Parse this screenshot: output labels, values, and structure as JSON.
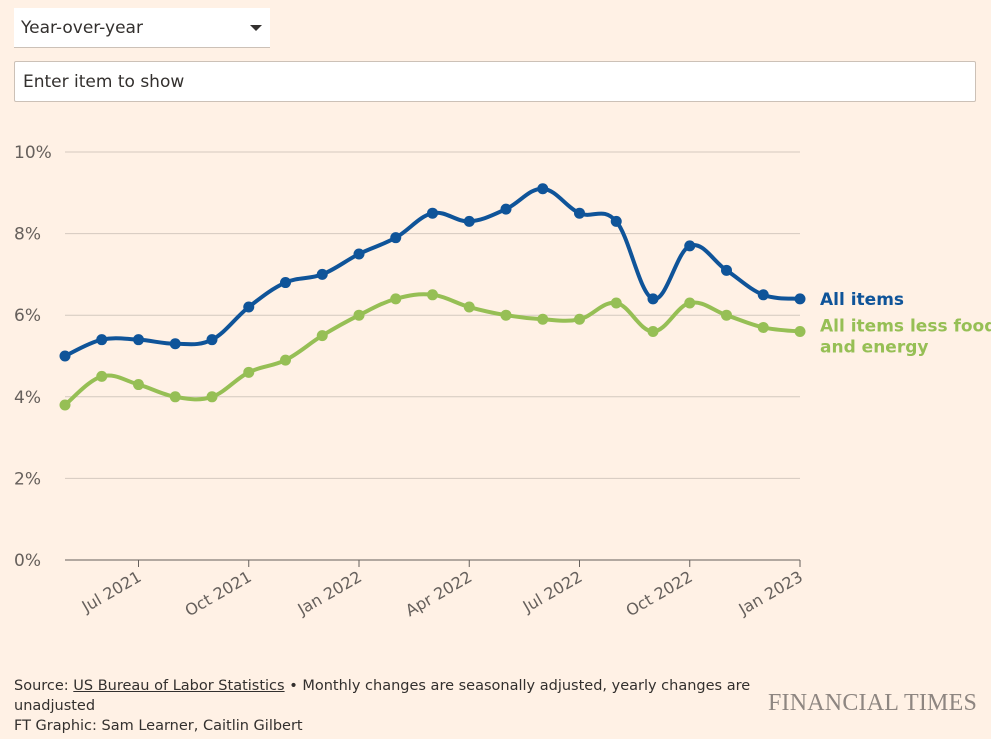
{
  "controls": {
    "mode_select": "Year-over-year",
    "search_placeholder": "Enter item to show"
  },
  "chart_data": {
    "type": "line",
    "x": [
      "May 2021",
      "Jun 2021",
      "Jul 2021",
      "Aug 2021",
      "Sep 2021",
      "Oct 2021",
      "Nov 2021",
      "Dec 2021",
      "Jan 2022",
      "Feb 2022",
      "Mar 2022",
      "Apr 2022",
      "May 2022",
      "Jun 2022",
      "Jul 2022",
      "Aug 2022",
      "Sep 2022",
      "Oct 2022",
      "Nov 2022",
      "Dec 2022",
      "Jan 2023"
    ],
    "x_tick_labels": [
      "Jul 2021",
      "Oct 2021",
      "Jan 2022",
      "Apr 2022",
      "Jul 2022",
      "Oct 2022",
      "Jan 2023"
    ],
    "x_tick_indices": [
      2,
      5,
      8,
      11,
      14,
      17,
      20
    ],
    "y_tick_labels": [
      "0%",
      "2%",
      "4%",
      "6%",
      "8%",
      "10%"
    ],
    "y_ticks": [
      0,
      2,
      4,
      6,
      8,
      10
    ],
    "ylim": [
      0,
      10
    ],
    "grid": true,
    "legend": "right, inline labels",
    "series": [
      {
        "name": "All items",
        "color": "#0f5499",
        "values": [
          5.0,
          5.4,
          5.4,
          5.3,
          5.4,
          6.2,
          6.8,
          7.0,
          7.5,
          7.9,
          8.5,
          8.3,
          8.6,
          9.1,
          8.5,
          8.3,
          6.4,
          7.7,
          7.1,
          6.5,
          6.4
        ]
      },
      {
        "name": "All items less food and energy",
        "name_lines": [
          "All items less food",
          "and energy"
        ],
        "color": "#96bf55",
        "values": [
          3.8,
          4.5,
          4.3,
          4.0,
          4.0,
          4.6,
          4.9,
          5.5,
          6.0,
          6.4,
          6.5,
          6.2,
          6.0,
          5.9,
          5.9,
          6.3,
          5.6,
          6.3,
          6.0,
          5.7,
          5.6
        ]
      }
    ]
  },
  "footer": {
    "source_prefix": "Source: ",
    "source_link": "US Bureau of Labor Statistics",
    "note": " • Monthly changes are seasonally adjusted, yearly changes are unadjusted",
    "credit": "FT Graphic: Sam Learner, Caitlin Gilbert",
    "logo": "FINANCIAL TIMES"
  }
}
